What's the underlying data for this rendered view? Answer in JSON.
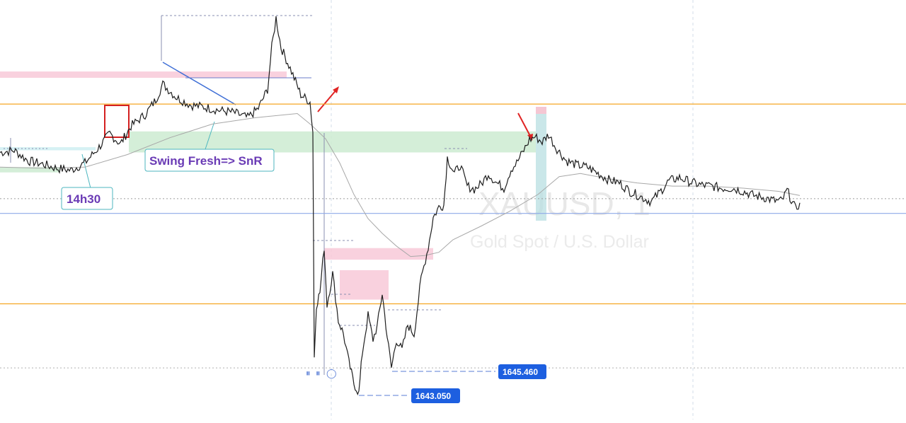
{
  "chart_data": {
    "type": "line",
    "symbol": "XAUUSD, 1",
    "description": "Gold Spot / U.S. Dollar",
    "y_range": [
      1640.6,
      1680.5
    ],
    "annotations": {
      "callout_time": "14h30",
      "callout_swing": "Swing Fresh=> SnR"
    },
    "price_labels": [
      {
        "value": "1645.460",
        "price": 1645.46
      },
      {
        "value": "1643.050",
        "price": 1643.05
      }
    ],
    "horizontal_levels": [
      {
        "price": 1670.6,
        "color": "#f5a623"
      },
      {
        "price": 1660.2,
        "color": "#8ea9e8"
      },
      {
        "price": 1651.6,
        "color": "#f5a623"
      },
      {
        "price": 1661.6,
        "color": "#9e9e9e",
        "style": "dotted"
      },
      {
        "price": 1645.5,
        "color": "#b0b0b0",
        "style": "dotted"
      }
    ],
    "zones": [
      {
        "name": "supply-top-left",
        "price_top": 1673.7,
        "price_bottom": 1673.1,
        "color": "#f8c9d8"
      },
      {
        "name": "demand-snr",
        "price_top": 1668.0,
        "price_bottom": 1666.0,
        "color": "#cdebd1"
      },
      {
        "name": "supply-mid",
        "price_top": 1656.9,
        "price_bottom": 1655.8,
        "color": "#f8c9d8"
      },
      {
        "name": "supply-low",
        "price_top": 1654.8,
        "price_bottom": 1652.0,
        "color": "#f8c9d8"
      },
      {
        "name": "demand-left-small",
        "price_top": 1664.6,
        "price_bottom": 1664.1,
        "color": "#cdebd1"
      },
      {
        "name": "blue-left",
        "price_top": 1666.5,
        "price_bottom": 1666.2,
        "color": "#cfeef2"
      }
    ],
    "price_series": [
      [
        0,
        1666.0
      ],
      [
        20,
        1666.2
      ],
      [
        40,
        1665.2
      ],
      [
        60,
        1664.9
      ],
      [
        80,
        1664.5
      ],
      [
        100,
        1664.3
      ],
      [
        120,
        1665.0
      ],
      [
        140,
        1666.5
      ],
      [
        155,
        1667.8
      ],
      [
        170,
        1666.8
      ],
      [
        185,
        1668.5
      ],
      [
        205,
        1669.6
      ],
      [
        220,
        1671.0
      ],
      [
        230,
        1672.5
      ],
      [
        250,
        1671.2
      ],
      [
        270,
        1670.5
      ],
      [
        290,
        1670.3
      ],
      [
        310,
        1670.0
      ],
      [
        330,
        1669.8
      ],
      [
        350,
        1669.3
      ],
      [
        365,
        1670.2
      ],
      [
        378,
        1672.0
      ],
      [
        384,
        1676.0
      ],
      [
        390,
        1678.8
      ],
      [
        397,
        1676.0
      ],
      [
        410,
        1674.0
      ],
      [
        425,
        1671.5
      ],
      [
        438,
        1670.8
      ],
      [
        442,
        1668.0
      ],
      [
        444,
        1646.5
      ],
      [
        447,
        1651.5
      ],
      [
        452,
        1652.7
      ],
      [
        458,
        1657.0
      ],
      [
        462,
        1651.5
      ],
      [
        470,
        1654.5
      ],
      [
        478,
        1650.0
      ],
      [
        485,
        1648.8
      ],
      [
        493,
        1646.0
      ],
      [
        500,
        1644.0
      ],
      [
        507,
        1643.1
      ],
      [
        512,
        1647.0
      ],
      [
        520,
        1650.5
      ],
      [
        527,
        1648.2
      ],
      [
        533,
        1649.5
      ],
      [
        540,
        1652.6
      ],
      [
        547,
        1648.5
      ],
      [
        553,
        1645.5
      ],
      [
        560,
        1648.2
      ],
      [
        568,
        1647.2
      ],
      [
        576,
        1649.6
      ],
      [
        585,
        1648.7
      ],
      [
        595,
        1654.0
      ],
      [
        605,
        1657.0
      ],
      [
        612,
        1659.8
      ],
      [
        620,
        1660.8
      ],
      [
        627,
        1661.0
      ],
      [
        632,
        1665.5
      ],
      [
        642,
        1664.0
      ],
      [
        650,
        1664.8
      ],
      [
        660,
        1662.8
      ],
      [
        670,
        1662.5
      ],
      [
        680,
        1663.0
      ],
      [
        690,
        1664.0
      ],
      [
        700,
        1663.2
      ],
      [
        712,
        1662.6
      ],
      [
        722,
        1664.4
      ],
      [
        730,
        1665.0
      ],
      [
        740,
        1666.2
      ],
      [
        748,
        1667.2
      ],
      [
        756,
        1667.5
      ],
      [
        766,
        1667.0
      ],
      [
        775,
        1667.7
      ],
      [
        785,
        1666.5
      ],
      [
        800,
        1665.2
      ],
      [
        815,
        1664.8
      ],
      [
        830,
        1664.6
      ],
      [
        845,
        1664.0
      ],
      [
        860,
        1663.4
      ],
      [
        875,
        1663.1
      ],
      [
        890,
        1662.3
      ],
      [
        905,
        1661.8
      ],
      [
        920,
        1661.3
      ],
      [
        932,
        1662.2
      ],
      [
        945,
        1663.3
      ],
      [
        960,
        1663.6
      ],
      [
        975,
        1663.2
      ],
      [
        990,
        1662.9
      ],
      [
        1005,
        1662.8
      ],
      [
        1020,
        1662.6
      ],
      [
        1035,
        1662.6
      ],
      [
        1050,
        1662.3
      ],
      [
        1065,
        1661.9
      ],
      [
        1080,
        1661.7
      ],
      [
        1095,
        1661.4
      ],
      [
        1105,
        1661.4
      ],
      [
        1112,
        1662.4
      ],
      [
        1118,
        1661.5
      ],
      [
        1124,
        1660.6
      ],
      [
        1130,
        1661.2
      ]
    ],
    "moving_average": [
      [
        0,
        1664.6
      ],
      [
        60,
        1664.5
      ],
      [
        120,
        1664.6
      ],
      [
        180,
        1665.8
      ],
      [
        240,
        1667.4
      ],
      [
        300,
        1668.7
      ],
      [
        360,
        1669.3
      ],
      [
        420,
        1669.7
      ],
      [
        440,
        1668.6
      ],
      [
        460,
        1667.3
      ],
      [
        480,
        1665.0
      ],
      [
        500,
        1662.0
      ],
      [
        520,
        1659.7
      ],
      [
        540,
        1658.3
      ],
      [
        560,
        1657.1
      ],
      [
        580,
        1656.1
      ],
      [
        600,
        1656.2
      ],
      [
        620,
        1656.5
      ],
      [
        640,
        1657.7
      ],
      [
        680,
        1659.0
      ],
      [
        720,
        1660.4
      ],
      [
        760,
        1662.0
      ],
      [
        790,
        1663.7
      ],
      [
        820,
        1664.0
      ],
      [
        860,
        1663.5
      ],
      [
        900,
        1663.1
      ],
      [
        950,
        1662.8
      ],
      [
        1000,
        1662.8
      ],
      [
        1050,
        1662.6
      ],
      [
        1100,
        1662.3
      ],
      [
        1130,
        1661.9
      ]
    ]
  }
}
